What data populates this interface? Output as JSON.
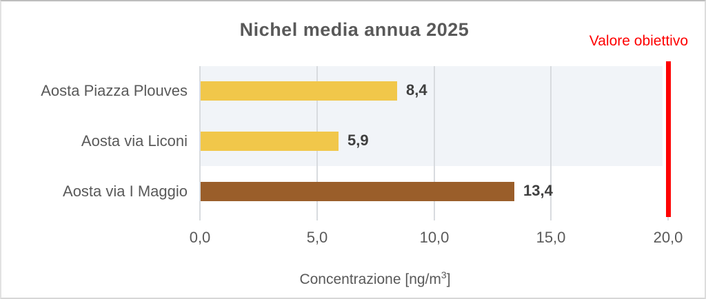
{
  "chart_data": {
    "type": "bar",
    "orientation": "horizontal",
    "title": "Nichel media annua 2025",
    "categories": [
      "Aosta Piazza Plouves",
      "Aosta via Liconi",
      "Aosta via I Maggio"
    ],
    "values": [
      8.4,
      5.9,
      13.4
    ],
    "value_labels": [
      "8,4",
      "5,9",
      "13,4"
    ],
    "bar_colors": [
      "#f1c74a",
      "#f1c74a",
      "#9a5e2a"
    ],
    "xlabel": "Concentrazione [ng/m³]",
    "xlabel_parts": {
      "prefix": "Concentrazione [ng/m",
      "sup": "3",
      "suffix": "]"
    },
    "xlim": [
      0,
      20
    ],
    "xticks": [
      0,
      5,
      10,
      15,
      20
    ],
    "xtick_labels": [
      "0,0",
      "5,0",
      "10,0",
      "15,0",
      "20,0"
    ],
    "grid": true,
    "legend": "none",
    "target_line": {
      "label": "Valore obiettivo",
      "value": 20,
      "color": "#fe0000"
    },
    "plot_band": {
      "rows": [
        0,
        1
      ],
      "color": "#f1f4f8"
    },
    "colors": {
      "title_text": "#595959",
      "axis_text": "#595959",
      "value_text": "#3f3f3f",
      "gridline": "#d8dbdf",
      "plot_background_band": "#f1f4f8",
      "background": "#ffffff"
    }
  }
}
